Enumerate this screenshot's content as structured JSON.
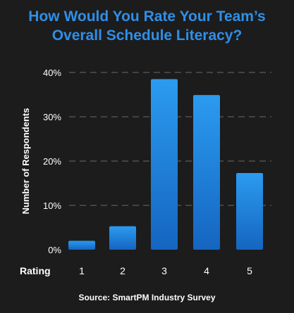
{
  "chart_data": {
    "type": "bar",
    "title_lines": [
      "How Would You Rate Your Team’s",
      "Overall Schedule Literacy?"
    ],
    "xlabel": "Rating",
    "ylabel": "Number of Respondents",
    "categories": [
      "1",
      "2",
      "3",
      "4",
      "5"
    ],
    "values": [
      2,
      5.3,
      38.5,
      34.9,
      17.3
    ],
    "ylim": [
      0,
      40
    ],
    "yticks": [
      0,
      10,
      20,
      30,
      40
    ],
    "ytick_labels": [
      "0%",
      "10%",
      "20%",
      "30%",
      "40%"
    ],
    "grid": true,
    "source": "Source: SmartPM Industry Survey",
    "colors": {
      "bar_top": "#2b9bf0",
      "bar_bottom": "#1565c0",
      "title": "#2f8fe8",
      "grid": "#6a6a6a",
      "text": "#ffffff",
      "background": "#1c1c1c"
    }
  }
}
